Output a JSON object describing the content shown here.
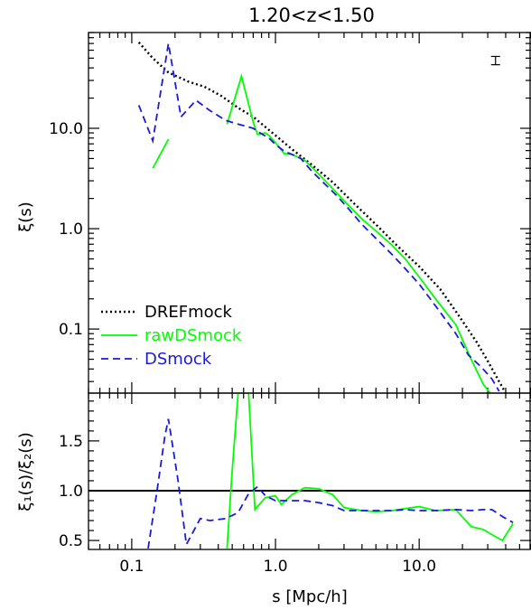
{
  "chart_data": [
    {
      "type": "line",
      "title": "1.20<z<1.50",
      "xlabel": "",
      "ylabel": "ξ(s)",
      "xscale": "log",
      "yscale": "log",
      "xlim": [
        0.05,
        60
      ],
      "ylim": [
        0.023,
        90
      ],
      "xticks": [
        {
          "value": 0.1,
          "label": ""
        },
        {
          "value": 1.0,
          "label": ""
        },
        {
          "value": 10.0,
          "label": ""
        }
      ],
      "yticks": [
        {
          "value": 0.1,
          "label": "0.1"
        },
        {
          "value": 1.0,
          "label": "1.0"
        },
        {
          "value": 10.0,
          "label": "10.0"
        }
      ],
      "legend_position": "bottom-left",
      "error_bar_marker": {
        "x": 34,
        "y_low": 43,
        "y_high": 52
      },
      "series": [
        {
          "name": "DREFmock",
          "color": "#000000",
          "dash": "dotted",
          "x": [
            0.112,
            0.14,
            0.18,
            0.25,
            0.32,
            0.42,
            0.55,
            0.7,
            1.0,
            1.3,
            1.8,
            2.5,
            3.5,
            5.0,
            7.0,
            10.0,
            14.0,
            18.0,
            25.0,
            30.0,
            36.0,
            40.0
          ],
          "y": [
            72,
            50,
            36,
            29,
            26,
            21,
            16,
            13,
            8.5,
            6.2,
            4.3,
            2.9,
            1.8,
            1.1,
            0.68,
            0.42,
            0.25,
            0.15,
            0.075,
            0.048,
            0.03,
            0.023
          ]
        },
        {
          "name": "rawDSmock",
          "color": "#00ff00",
          "dash": "solid",
          "segments": [
            {
              "x": [
                0.14,
                0.18
              ],
              "y": [
                4.0,
                7.8
              ]
            },
            {
              "x": [
                0.46,
                0.58,
                0.7,
                0.75,
                0.85,
                0.9,
                1.0,
                1.15,
                1.3,
                1.6,
                2.0,
                2.5,
                3.0,
                4.0,
                5.0,
                6.5,
                8.0,
                10.0,
                13.0,
                18.0,
                23.0,
                28.0,
                32.0
              ],
              "y": [
                11.0,
                33.0,
                11.5,
                8.7,
                9.0,
                8.5,
                7.2,
                5.6,
                5.5,
                4.8,
                3.5,
                2.5,
                1.9,
                1.25,
                0.95,
                0.68,
                0.5,
                0.33,
                0.2,
                0.11,
                0.05,
                0.028,
                0.022
              ]
            }
          ]
        },
        {
          "name": "DSmock",
          "color": "#1a1adb",
          "dash": "dashed",
          "x": [
            0.112,
            0.14,
            0.18,
            0.22,
            0.28,
            0.35,
            0.45,
            0.55,
            0.7,
            0.8,
            0.9,
            1.0,
            1.15,
            1.3,
            1.5,
            1.8,
            2.2,
            2.7,
            3.2,
            4.0,
            5.0,
            6.5,
            8.0,
            10.0,
            13.0,
            18.0,
            22.0,
            27.0,
            32.0,
            36.0
          ],
          "y": [
            17,
            7.5,
            70,
            13,
            19,
            15,
            12,
            11,
            10,
            8.8,
            8.0,
            6.9,
            5.9,
            5.5,
            5.0,
            3.7,
            2.8,
            2.1,
            1.6,
            1.1,
            0.8,
            0.55,
            0.4,
            0.28,
            0.17,
            0.09,
            0.055,
            0.042,
            0.032,
            0.024
          ]
        }
      ]
    },
    {
      "type": "line",
      "title": "",
      "xlabel": "s [Mpc/h]",
      "ylabel": "ξ₁(s)/ξ₂(s)",
      "xscale": "log",
      "yscale": "linear",
      "xlim": [
        0.05,
        60
      ],
      "ylim": [
        0.41,
        1.98
      ],
      "xticks": [
        {
          "value": 0.1,
          "label": "0.1"
        },
        {
          "value": 1.0,
          "label": "1.0"
        },
        {
          "value": 10.0,
          "label": "10.0"
        }
      ],
      "yticks": [
        {
          "value": 0.5,
          "label": "0.5"
        },
        {
          "value": 1.0,
          "label": "1.0"
        },
        {
          "value": 1.5,
          "label": "1.5"
        }
      ],
      "reference_line": {
        "y": 1.0,
        "color": "#000000"
      },
      "series": [
        {
          "name": "rawDSmock",
          "color": "#00ff00",
          "dash": "solid",
          "x": [
            0.46,
            0.5,
            0.55,
            0.65,
            0.72,
            0.85,
            1.0,
            1.1,
            1.3,
            1.6,
            2.0,
            2.5,
            3.0,
            4.0,
            5.0,
            6.5,
            8.0,
            10.0,
            13.0,
            18.0,
            23.0,
            28.0,
            32.0,
            38.0,
            45.0
          ],
          "y": [
            0.42,
            1.2,
            1.98,
            1.98,
            0.81,
            0.93,
            0.95,
            0.86,
            0.96,
            1.03,
            1.02,
            0.96,
            0.83,
            0.8,
            0.79,
            0.8,
            0.82,
            0.84,
            0.8,
            0.81,
            0.64,
            0.61,
            0.56,
            0.5,
            0.67
          ]
        },
        {
          "name": "DSmock",
          "color": "#1a1adb",
          "dash": "dashed",
          "x": [
            0.13,
            0.15,
            0.17,
            0.18,
            0.21,
            0.24,
            0.3,
            0.35,
            0.45,
            0.55,
            0.65,
            0.75,
            0.85,
            1.0,
            1.3,
            1.6,
            2.0,
            2.5,
            3.0,
            4.0,
            5.0,
            6.5,
            8.0,
            10.0,
            13.0,
            18.0,
            23.0,
            28.0,
            32.0,
            38.0,
            45.0
          ],
          "y": [
            0.42,
            1.0,
            1.55,
            1.72,
            1.1,
            0.46,
            0.72,
            0.7,
            0.72,
            0.78,
            0.97,
            1.04,
            0.95,
            0.9,
            0.9,
            0.9,
            0.88,
            0.85,
            0.8,
            0.8,
            0.8,
            0.8,
            0.81,
            0.8,
            0.8,
            0.81,
            0.8,
            0.81,
            0.81,
            0.74,
            0.68
          ]
        }
      ]
    }
  ]
}
